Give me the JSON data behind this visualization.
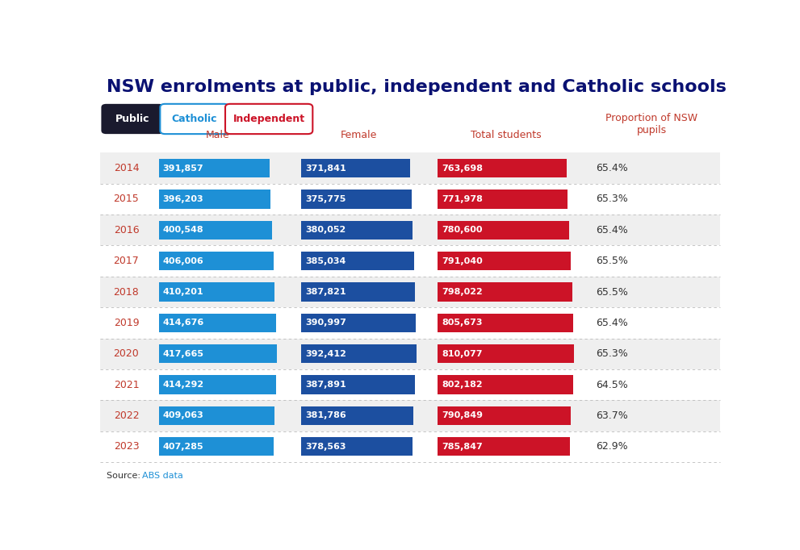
{
  "title": "NSW enrolments at public, independent and Catholic schools",
  "col_headers": [
    "Male",
    "Female",
    "Total students",
    "Proportion of NSW\npupils"
  ],
  "years": [
    2014,
    2015,
    2016,
    2017,
    2018,
    2019,
    2020,
    2021,
    2022,
    2023
  ],
  "male": [
    391857,
    396203,
    400548,
    406006,
    410201,
    414676,
    417665,
    414292,
    409063,
    407285
  ],
  "female": [
    371841,
    375775,
    380052,
    385034,
    387821,
    390997,
    392412,
    387891,
    381786,
    378563
  ],
  "total": [
    763698,
    771978,
    780600,
    791040,
    798022,
    805673,
    810077,
    802182,
    790849,
    785847
  ],
  "proportion": [
    "65.4%",
    "65.3%",
    "65.4%",
    "65.5%",
    "65.5%",
    "65.4%",
    "65.3%",
    "64.5%",
    "63.7%",
    "62.9%"
  ],
  "male_labels": [
    "391,857",
    "396,203",
    "400,548",
    "406,006",
    "410,201",
    "414,676",
    "417,665",
    "414,292",
    "409,063",
    "407,285"
  ],
  "female_labels": [
    "371,841",
    "375,775",
    "380,052",
    "385,034",
    "387,821",
    "390,997",
    "392,412",
    "387,891",
    "381,786",
    "378,563"
  ],
  "total_labels": [
    "763,698",
    "771,978",
    "780,600",
    "791,040",
    "798,022",
    "805,673",
    "810,077",
    "802,182",
    "790,849",
    "785,847"
  ],
  "male_bar_color": "#1e90d6",
  "female_bar_color": "#1c4fa0",
  "total_bar_color": "#cc1327",
  "row_bg_even": "#efefef",
  "row_bg_odd": "#ffffff",
  "year_color": "#c0392b",
  "proportion_color": "#333333",
  "header_color": "#c0392b",
  "title_color": "#0a1172",
  "source_link_color": "#1e90d6",
  "bg_color": "#ffffff",
  "button_active_bg": "#1a1a2e",
  "button_active_text": "#ffffff",
  "button_inactive_border": "#1e90d6",
  "button_inactive_text": "#1e90d6",
  "button2_border": "#cc1327",
  "button2_text": "#cc1327"
}
